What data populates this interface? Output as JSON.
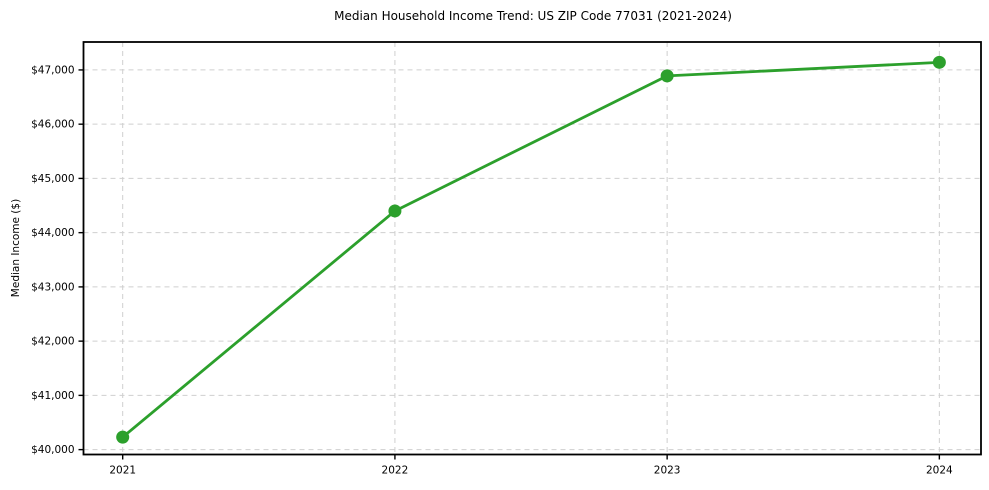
{
  "page": {
    "background": "#ffffff"
  },
  "chart_data": {
    "type": "line",
    "title": "Median Household Income Trend: US ZIP Code 77031 (2021-2024)",
    "xlabel": "",
    "ylabel": "Median Income ($)",
    "x": [
      2021,
      2022,
      2023,
      2024
    ],
    "values": [
      40230,
      44400,
      46890,
      47140
    ],
    "xticks": {
      "values": [
        2021,
        2022,
        2023,
        2024
      ],
      "labels": [
        "2021",
        "2022",
        "2023",
        "2024"
      ]
    },
    "yticks": {
      "values": [
        40000,
        41000,
        42000,
        43000,
        44000,
        45000,
        46000,
        47000
      ],
      "labels": [
        "$40,000",
        "$41,000",
        "$42,000",
        "$43,000",
        "$44,000",
        "$45,000",
        "$46,000",
        "$47,000"
      ]
    },
    "xlim": [
      2020.856,
      2024.153
    ],
    "ylim": [
      39910,
      47515
    ],
    "grid": {
      "show": true,
      "color": "#cfcfcf",
      "dash": "5 4"
    },
    "line_color": "#2ca02c",
    "marker_color": "#2ca02c",
    "spine_color": "#000000",
    "text_color": "#000000",
    "legend": null
  }
}
